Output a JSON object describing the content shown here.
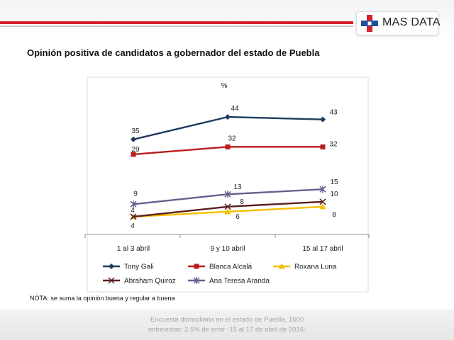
{
  "header": {
    "brand": "MAS DATA",
    "logo_colors": {
      "red": "#d6202a",
      "blue": "#1f4e9c"
    }
  },
  "title": "Opinión  positiva  de  candidatos  a  gobernador  del  estado  de  Puebla",
  "note": "NOTA: se suma la opinión buena  y regular a buena",
  "footer": {
    "line1": "Encuesta domiciliaria en el estado de Puebla, 1600",
    "line2": "entrevistas: 2.5% de error  -15 al 17 de abril de 2016-"
  },
  "chart_data": {
    "type": "line",
    "unit_label": "%",
    "categories": [
      "1 al 3 abril",
      "9 y 10 abril",
      "15 al 17 abril"
    ],
    "ylim": [
      0,
      50
    ],
    "grid": false,
    "legend_position": "bottom",
    "series": [
      {
        "name": "Tony Gali",
        "values": [
          35,
          44,
          43
        ],
        "color": "#1f3c5e",
        "marker": "diamond"
      },
      {
        "name": "Blanca Alcalá",
        "values": [
          29,
          32,
          32
        ],
        "color": "#b91c1c",
        "marker": "square"
      },
      {
        "name": "Roxana Luna",
        "values": [
          4,
          6,
          8
        ],
        "color": "#f5c000",
        "marker": "triangle"
      },
      {
        "name": "Abraham Quiroz",
        "values": [
          4,
          8,
          10
        ],
        "color": "#5a1f1f",
        "marker": "x"
      },
      {
        "name": "Ana Teresa Aranda",
        "values": [
          9,
          13,
          15
        ],
        "color": "#6a5f8f",
        "marker": "asterisk"
      }
    ]
  }
}
